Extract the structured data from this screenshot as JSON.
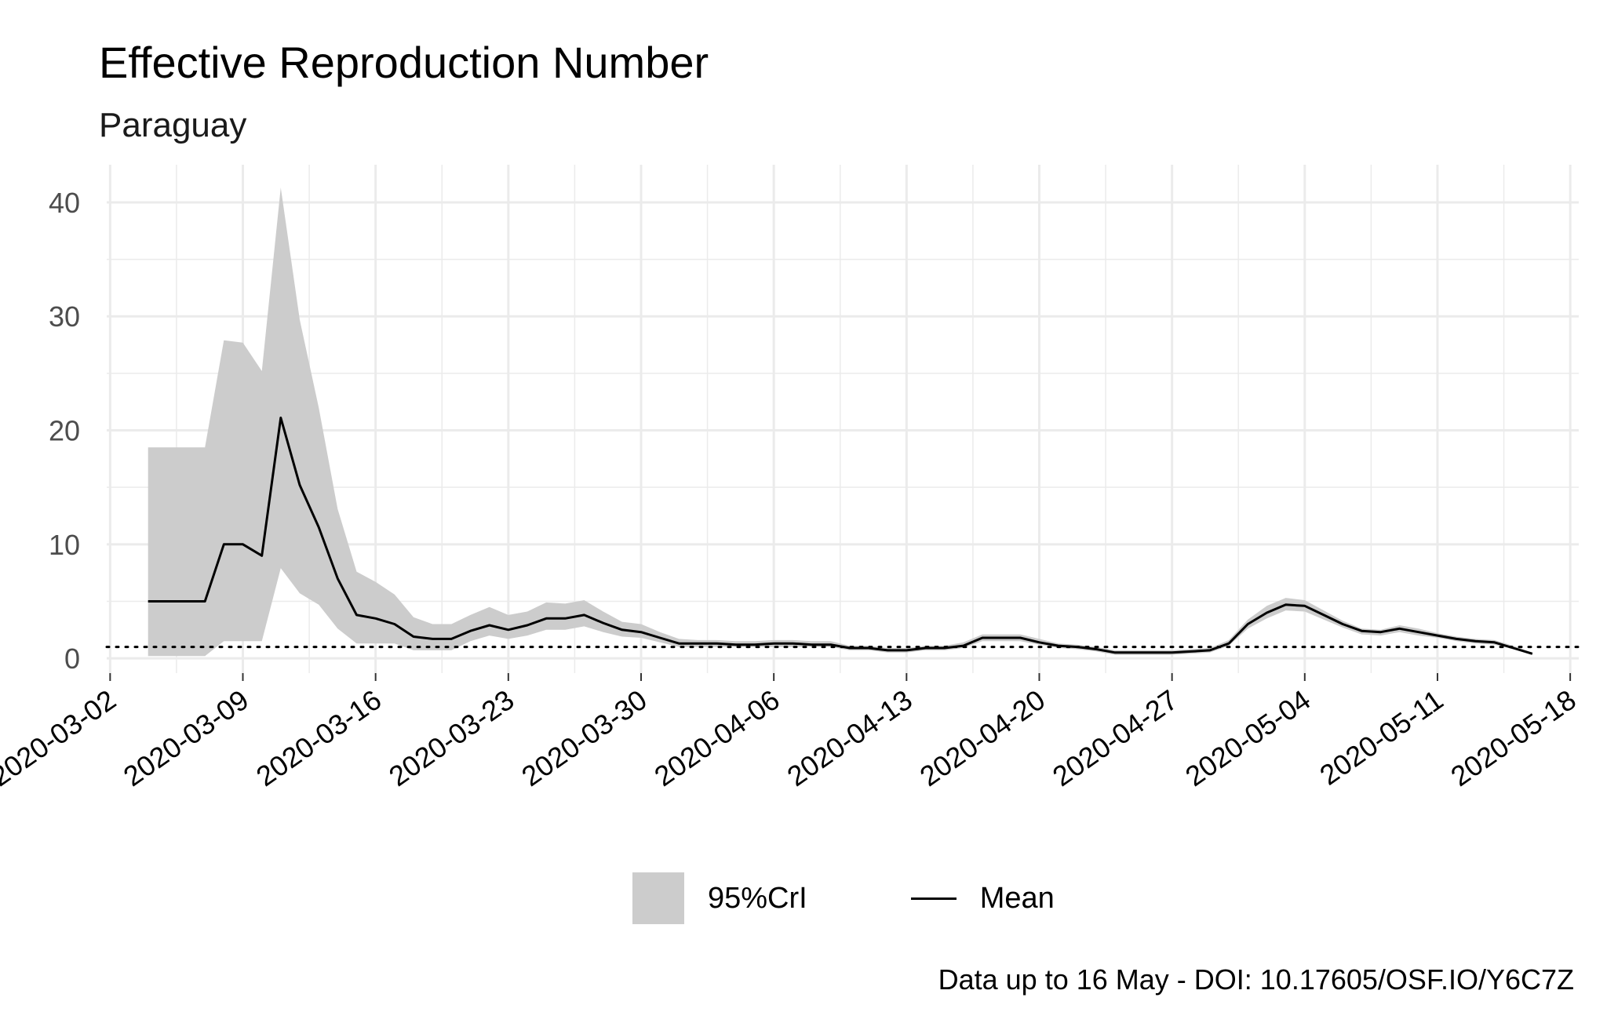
{
  "chart_data": {
    "type": "line",
    "title": "Effective Reproduction Number",
    "subtitle": "Paraguay",
    "caption": "Data up to 16 May - DOI: 10.17605/OSF.IO/Y6C7Z",
    "xlabel": "",
    "ylabel": "",
    "x_type": "date",
    "xlim": [
      "2020-03-02",
      "2020-05-18"
    ],
    "ylim": [
      -1.3,
      43.3
    ],
    "x_ticks": [
      "2020-03-02",
      "2020-03-09",
      "2020-03-16",
      "2020-03-23",
      "2020-03-30",
      "2020-04-06",
      "2020-04-13",
      "2020-04-20",
      "2020-04-27",
      "2020-05-04",
      "2020-05-11",
      "2020-05-18"
    ],
    "y_ticks": [
      0,
      10,
      20,
      30,
      40
    ],
    "reference_line": {
      "y": 1,
      "style": "dotted"
    },
    "grid": true,
    "legend": {
      "position": "bottom",
      "entries": [
        {
          "label": "95%CrI",
          "kind": "band"
        },
        {
          "label": "Mean",
          "kind": "line"
        }
      ]
    },
    "colors": {
      "band": "#cccccc",
      "line": "#000000",
      "grid": "#ebebeb",
      "tick_text": "#4d4d4d"
    },
    "series": [
      {
        "name": "Mean",
        "x": [
          "2020-03-04",
          "2020-03-05",
          "2020-03-06",
          "2020-03-07",
          "2020-03-08",
          "2020-03-09",
          "2020-03-10",
          "2020-03-11",
          "2020-03-12",
          "2020-03-13",
          "2020-03-14",
          "2020-03-15",
          "2020-03-16",
          "2020-03-17",
          "2020-03-18",
          "2020-03-19",
          "2020-03-20",
          "2020-03-21",
          "2020-03-22",
          "2020-03-23",
          "2020-03-24",
          "2020-03-25",
          "2020-03-26",
          "2020-03-27",
          "2020-03-28",
          "2020-03-29",
          "2020-03-30",
          "2020-03-31",
          "2020-04-01",
          "2020-04-02",
          "2020-04-03",
          "2020-04-04",
          "2020-04-05",
          "2020-04-06",
          "2020-04-07",
          "2020-04-08",
          "2020-04-09",
          "2020-04-10",
          "2020-04-11",
          "2020-04-12",
          "2020-04-13",
          "2020-04-14",
          "2020-04-15",
          "2020-04-16",
          "2020-04-17",
          "2020-04-18",
          "2020-04-19",
          "2020-04-20",
          "2020-04-21",
          "2020-04-22",
          "2020-04-23",
          "2020-04-24",
          "2020-04-25",
          "2020-04-26",
          "2020-04-27",
          "2020-04-28",
          "2020-04-29",
          "2020-04-30",
          "2020-05-01",
          "2020-05-02",
          "2020-05-03",
          "2020-05-04",
          "2020-05-05",
          "2020-05-06",
          "2020-05-07",
          "2020-05-08",
          "2020-05-09",
          "2020-05-10",
          "2020-05-11",
          "2020-05-12",
          "2020-05-13",
          "2020-05-14",
          "2020-05-15",
          "2020-05-16"
        ],
        "mean": [
          5.0,
          5.0,
          5.0,
          5.0,
          10.0,
          10.0,
          9.0,
          21.1,
          15.2,
          11.5,
          7.0,
          3.8,
          3.5,
          3.0,
          1.9,
          1.7,
          1.7,
          2.4,
          2.9,
          2.5,
          2.9,
          3.5,
          3.5,
          3.8,
          3.1,
          2.5,
          2.3,
          1.8,
          1.3,
          1.3,
          1.3,
          1.2,
          1.2,
          1.3,
          1.3,
          1.2,
          1.2,
          0.9,
          0.9,
          0.7,
          0.7,
          0.9,
          0.9,
          1.1,
          1.8,
          1.8,
          1.8,
          1.4,
          1.1,
          1.0,
          0.8,
          0.5,
          0.5,
          0.5,
          0.5,
          0.6,
          0.7,
          1.3,
          3.0,
          4.0,
          4.7,
          4.6,
          3.8,
          3.0,
          2.4,
          2.3,
          2.6,
          2.3,
          2.0,
          1.7,
          1.5,
          1.4,
          0.9,
          0.4
        ],
        "lower": [
          0.2,
          0.2,
          0.2,
          0.2,
          1.5,
          1.5,
          1.5,
          7.9,
          5.7,
          4.7,
          2.6,
          1.3,
          1.3,
          1.3,
          0.7,
          0.7,
          0.7,
          1.5,
          2.0,
          1.7,
          2.0,
          2.5,
          2.5,
          2.8,
          2.3,
          1.9,
          1.8,
          1.4,
          1.0,
          1.0,
          1.0,
          1.0,
          1.0,
          1.0,
          1.0,
          1.0,
          1.0,
          0.7,
          0.7,
          0.5,
          0.5,
          0.7,
          0.7,
          0.9,
          1.5,
          1.5,
          1.5,
          1.2,
          0.9,
          0.8,
          0.6,
          0.3,
          0.3,
          0.3,
          0.3,
          0.4,
          0.5,
          1.1,
          2.6,
          3.5,
          4.2,
          4.1,
          3.4,
          2.7,
          2.1,
          2.0,
          2.3,
          2.0,
          1.8,
          1.5,
          1.3,
          1.2,
          0.8,
          0.3
        ],
        "upper": [
          18.5,
          18.5,
          18.5,
          18.5,
          27.9,
          27.7,
          25.2,
          41.3,
          29.7,
          22.0,
          13.1,
          7.6,
          6.7,
          5.6,
          3.6,
          3.0,
          3.0,
          3.8,
          4.5,
          3.8,
          4.1,
          4.9,
          4.8,
          5.1,
          4.1,
          3.2,
          3.0,
          2.3,
          1.7,
          1.6,
          1.6,
          1.5,
          1.5,
          1.6,
          1.6,
          1.5,
          1.5,
          1.1,
          1.1,
          0.9,
          0.9,
          1.1,
          1.1,
          1.4,
          2.1,
          2.1,
          2.1,
          1.7,
          1.3,
          1.2,
          1.0,
          0.7,
          0.7,
          0.7,
          0.7,
          0.8,
          0.9,
          1.6,
          3.4,
          4.6,
          5.3,
          5.1,
          4.2,
          3.3,
          2.6,
          2.5,
          2.9,
          2.6,
          2.2,
          1.9,
          1.7,
          1.6,
          1.1,
          0.5
        ]
      }
    ]
  }
}
